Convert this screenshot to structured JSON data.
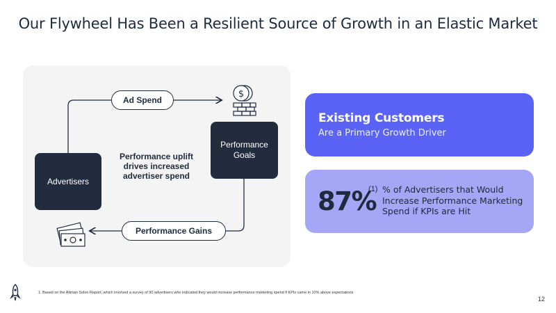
{
  "slide": {
    "title": "Our Flywheel Has Been a Resilient Source of Growth in an Elastic Market",
    "page_number": "12"
  },
  "flywheel": {
    "ad_spend_label": "Ad Spend",
    "performance_gains_label": "Performance Gains",
    "advertisers_label": "Advertisers",
    "performance_goals_label": "Performance Goals",
    "center_text": "Performance uplift drives increased advertiser spend",
    "icons": [
      "dollar-coins-icon",
      "cash-bills-icon"
    ]
  },
  "cards": {
    "existing_customers": {
      "heading": "Existing Customers",
      "subheading": "Are a Primary Growth Driver",
      "color": "#5a63f5"
    },
    "stat": {
      "value": "87%",
      "footnote_marker": "(1)",
      "description": "% of Advertisers that Would Increase Performance Marketing Spend if KPIs are Hit",
      "color": "#a5a6f6"
    }
  },
  "footnote": "1.   Based on the Altman Solon Report, which involved a survey of 90 advertisers who indicated they would increase performance marketing spend if KPIs came in 10% above expectations",
  "colors": {
    "dark": "#232c3e",
    "text": "#1f2a3c"
  }
}
